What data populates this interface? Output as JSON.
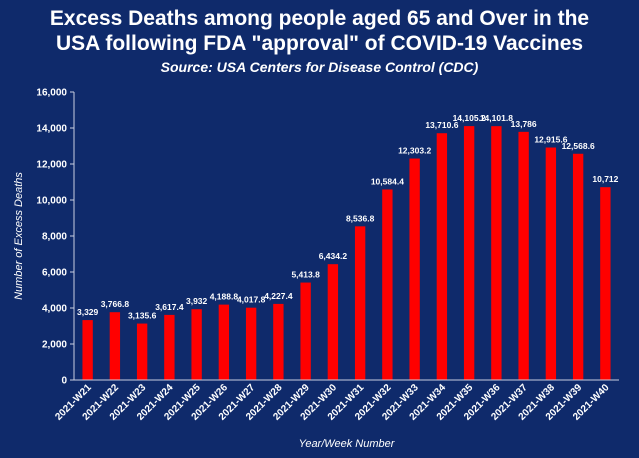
{
  "chart_data": {
    "type": "bar",
    "title": "Excess Deaths among people aged 65 and Over in the USA following FDA \"approval\" of COVID-19 Vaccines",
    "title_line1": "Excess Deaths among people aged 65 and Over in the",
    "title_line2": "USA following FDA \"approval\" of COVID-19 Vaccines",
    "subtitle": "Source: USA Centers for Disease Control (CDC)",
    "xlabel": "Year/Week Number",
    "ylabel": "Number of Excess Deaths",
    "ylim": [
      0,
      16000
    ],
    "yticks": [
      0,
      2000,
      4000,
      6000,
      8000,
      10000,
      12000,
      14000,
      16000
    ],
    "ytick_labels": [
      "0",
      "2,000",
      "4,000",
      "6,000",
      "8,000",
      "10,000",
      "12,000",
      "14,000",
      "16,000"
    ],
    "grid": false,
    "categories": [
      "2021-W21",
      "2021-W22",
      "2021-W23",
      "2021-W24",
      "2021-W25",
      "2021-W26",
      "2021-W27",
      "2021-W28",
      "2021-W29",
      "2021-W30",
      "2021-W31",
      "2021-W32",
      "2021-W33",
      "2021-W34",
      "2021-W35",
      "2021-W36",
      "2021-W37",
      "2021-W38",
      "2021-W39",
      "2021-W40"
    ],
    "values": [
      3329,
      3766.8,
      3135.6,
      3617.4,
      3932,
      4188.8,
      4017.8,
      4227.4,
      5413.8,
      6434.2,
      8536.8,
      10584.4,
      12303.2,
      13710.6,
      14105.2,
      14101.8,
      13786,
      12915.6,
      12568.6,
      10712
    ],
    "value_labels": [
      "3,329",
      "3,766.8",
      "3,135.6",
      "3,617.4",
      "3,932",
      "4,188.8",
      "4,017.8",
      "4,227.4",
      "5,413.8",
      "6,434.2",
      "8,536.8",
      "10,584.4",
      "12,303.2",
      "13,710.6",
      "14,105.2",
      "14,101.8",
      "13,786",
      "12,915.6",
      "12,568.6",
      "10,712"
    ],
    "colors": {
      "bar": "#ff0000",
      "background": "#0f2a6b",
      "text": "#ffffff"
    }
  }
}
